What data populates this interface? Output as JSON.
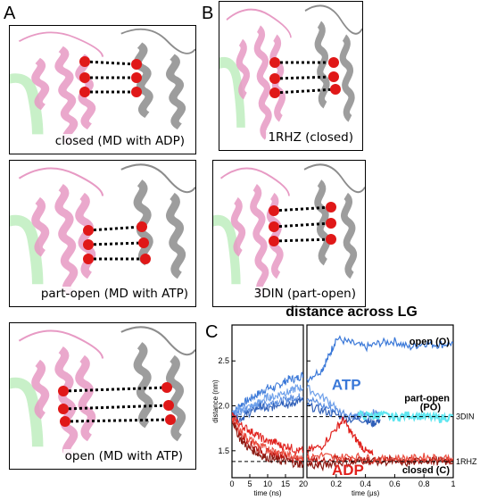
{
  "figure": {
    "panel_letters": [
      "A",
      "B",
      "C"
    ],
    "structures": [
      {
        "caption": "closed (MD with ADP)"
      },
      {
        "caption": "1RHZ (closed)"
      },
      {
        "caption": "part-open (MD with ATP)"
      },
      {
        "caption": "3DIN (part-open)"
      },
      {
        "caption": "open (MD with ATP)"
      }
    ],
    "colors": {
      "pink": "#e79ac4",
      "grey": "#8c8c8c",
      "green": "#9be39a",
      "bead": "#e01818",
      "atp": "#3a78d8",
      "adp": "#e0201c",
      "cyan": "#5fe6f0"
    }
  },
  "chart_data": {
    "type": "line",
    "title": "distance across LG",
    "ylabel": "distance (nm)",
    "ylim": [
      1.2,
      2.9
    ],
    "yticks": [
      1.5,
      2.0,
      2.5
    ],
    "left_panel": {
      "xlabel": "time (ns)",
      "xlim": [
        0,
        20
      ],
      "xticks": [
        0,
        5,
        10,
        15,
        20
      ]
    },
    "right_panel": {
      "xlabel": "time (μs)",
      "xlim": [
        0,
        1
      ],
      "xticks": [
        0.2,
        0.4,
        0.6,
        0.8,
        1
      ]
    },
    "reference_lines": [
      {
        "name": "3DIN",
        "y": 1.88
      },
      {
        "name": "1RHZ",
        "y": 1.38
      }
    ],
    "annotations": [
      {
        "text": "open (O)",
        "color": "#000000"
      },
      {
        "text": "ATP",
        "color": "#3a78d8"
      },
      {
        "text": "part-open",
        "color": "#000000"
      },
      {
        "text": "(PO)",
        "color": "#000000"
      },
      {
        "text": "ADP",
        "color": "#e0201c"
      },
      {
        "text": "closed (C)",
        "color": "#000000"
      }
    ],
    "series": [
      {
        "group": "ATP",
        "color": "#3a78d8",
        "ns_x": [
          0,
          2,
          4,
          6,
          8,
          10,
          12,
          14,
          16,
          18,
          20
        ],
        "ns_y": [
          1.9,
          2.0,
          2.05,
          2.1,
          2.15,
          2.2,
          2.2,
          2.25,
          2.3,
          2.3,
          2.35
        ],
        "us_x": [
          0,
          0.1,
          0.15,
          0.2,
          0.3,
          0.4,
          0.5,
          0.6,
          0.7,
          0.8,
          0.9,
          1.0
        ],
        "us_y": [
          2.3,
          2.4,
          2.55,
          2.75,
          2.7,
          2.65,
          2.7,
          2.72,
          2.65,
          2.7,
          2.68,
          2.7
        ]
      },
      {
        "group": "ATP",
        "color": "#5a8de0",
        "ns_x": [
          0,
          2,
          4,
          6,
          8,
          10,
          12,
          14,
          16,
          18,
          20
        ],
        "ns_y": [
          1.9,
          1.92,
          1.95,
          1.98,
          2.0,
          2.02,
          2.05,
          2.05,
          2.08,
          2.1,
          2.1
        ],
        "us_x": [
          0,
          0.1,
          0.2,
          0.3,
          0.35,
          0.4,
          0.45,
          0.5
        ],
        "us_y": [
          2.1,
          2.0,
          1.95,
          1.9,
          1.88,
          1.9,
          1.92,
          1.9
        ]
      },
      {
        "group": "ATP",
        "color": "#2f5fb8",
        "ns_x": [
          0,
          2,
          4,
          6,
          8,
          10,
          12,
          14,
          16,
          18,
          20
        ],
        "ns_y": [
          1.9,
          1.85,
          1.9,
          1.95,
          2.0,
          1.95,
          2.0,
          2.05,
          2.0,
          2.05,
          2.05
        ],
        "us_x": [
          0,
          0.1,
          0.2,
          0.3,
          0.4,
          0.45,
          0.5
        ],
        "us_y": [
          2.0,
          1.95,
          1.9,
          1.85,
          1.85,
          1.8,
          1.85
        ]
      },
      {
        "group": "ATP",
        "color": "#6ea0ea",
        "ns_x": [
          0,
          2,
          4,
          6,
          8,
          10,
          12,
          14,
          16,
          18,
          20
        ],
        "ns_y": [
          1.9,
          1.95,
          1.98,
          2.0,
          2.05,
          2.1,
          2.1,
          2.15,
          2.15,
          2.2,
          2.2
        ],
        "us_x": [
          0,
          0.1,
          0.2
        ],
        "us_y": [
          2.2,
          2.1,
          2.0
        ]
      },
      {
        "group": "PO",
        "color": "#5fe6f0",
        "ns_x": [],
        "ns_y": [],
        "us_x": [
          0.35,
          0.45,
          0.5,
          0.6,
          0.7,
          0.8,
          0.9,
          1.0
        ],
        "us_y": [
          1.9,
          1.88,
          1.9,
          1.87,
          1.9,
          1.88,
          1.86,
          1.88
        ]
      },
      {
        "group": "ADP",
        "color": "#e0201c",
        "ns_x": [
          0,
          2,
          4,
          6,
          8,
          10,
          12,
          14,
          16,
          18,
          20
        ],
        "ns_y": [
          1.9,
          1.8,
          1.75,
          1.7,
          1.65,
          1.6,
          1.6,
          1.55,
          1.55,
          1.5,
          1.5
        ],
        "us_x": [
          0,
          0.1,
          0.2,
          0.25,
          0.3,
          0.35,
          0.4,
          0.45
        ],
        "us_y": [
          1.5,
          1.55,
          1.75,
          1.85,
          1.7,
          1.6,
          1.5,
          1.45
        ]
      },
      {
        "group": "ADP",
        "color": "#b81510",
        "ns_x": [
          0,
          2,
          4,
          6,
          8,
          10,
          12,
          14,
          16,
          18,
          20
        ],
        "ns_y": [
          1.85,
          1.7,
          1.6,
          1.55,
          1.5,
          1.48,
          1.45,
          1.45,
          1.42,
          1.4,
          1.4
        ],
        "us_x": [
          0,
          0.1,
          0.2,
          0.3,
          0.4,
          0.5,
          0.6,
          0.7,
          0.8,
          0.9,
          1.0
        ],
        "us_y": [
          1.4,
          1.38,
          1.42,
          1.4,
          1.38,
          1.4,
          1.4,
          1.38,
          1.4,
          1.39,
          1.4
        ]
      },
      {
        "group": "ADP",
        "color": "#8a1a12",
        "ns_x": [
          0,
          2,
          4,
          6,
          8,
          10,
          12,
          14,
          16,
          18,
          20
        ],
        "ns_y": [
          1.85,
          1.65,
          1.55,
          1.5,
          1.45,
          1.42,
          1.4,
          1.38,
          1.38,
          1.35,
          1.35
        ],
        "us_x": [
          0,
          0.1,
          0.2,
          0.3,
          0.4,
          0.5,
          0.6,
          0.7,
          0.8,
          0.9,
          1.0
        ],
        "us_y": [
          1.35,
          1.32,
          1.38,
          1.36,
          1.4,
          1.38,
          1.38,
          1.36,
          1.4,
          1.38,
          1.37
        ]
      },
      {
        "group": "ADP",
        "color": "#ea4a3c",
        "ns_x": [
          0,
          2,
          4,
          6,
          8,
          10,
          12,
          14,
          16,
          18,
          20
        ],
        "ns_y": [
          1.88,
          1.75,
          1.65,
          1.6,
          1.55,
          1.52,
          1.5,
          1.48,
          1.45,
          1.45,
          1.42
        ],
        "us_x": [
          0,
          0.1,
          0.2,
          0.3,
          0.4,
          0.5,
          0.6,
          0.7,
          0.8,
          0.9,
          1.0
        ],
        "us_y": [
          1.42,
          1.45,
          1.42,
          1.44,
          1.42,
          1.4,
          1.42,
          1.41,
          1.43,
          1.42,
          1.42
        ]
      }
    ]
  }
}
